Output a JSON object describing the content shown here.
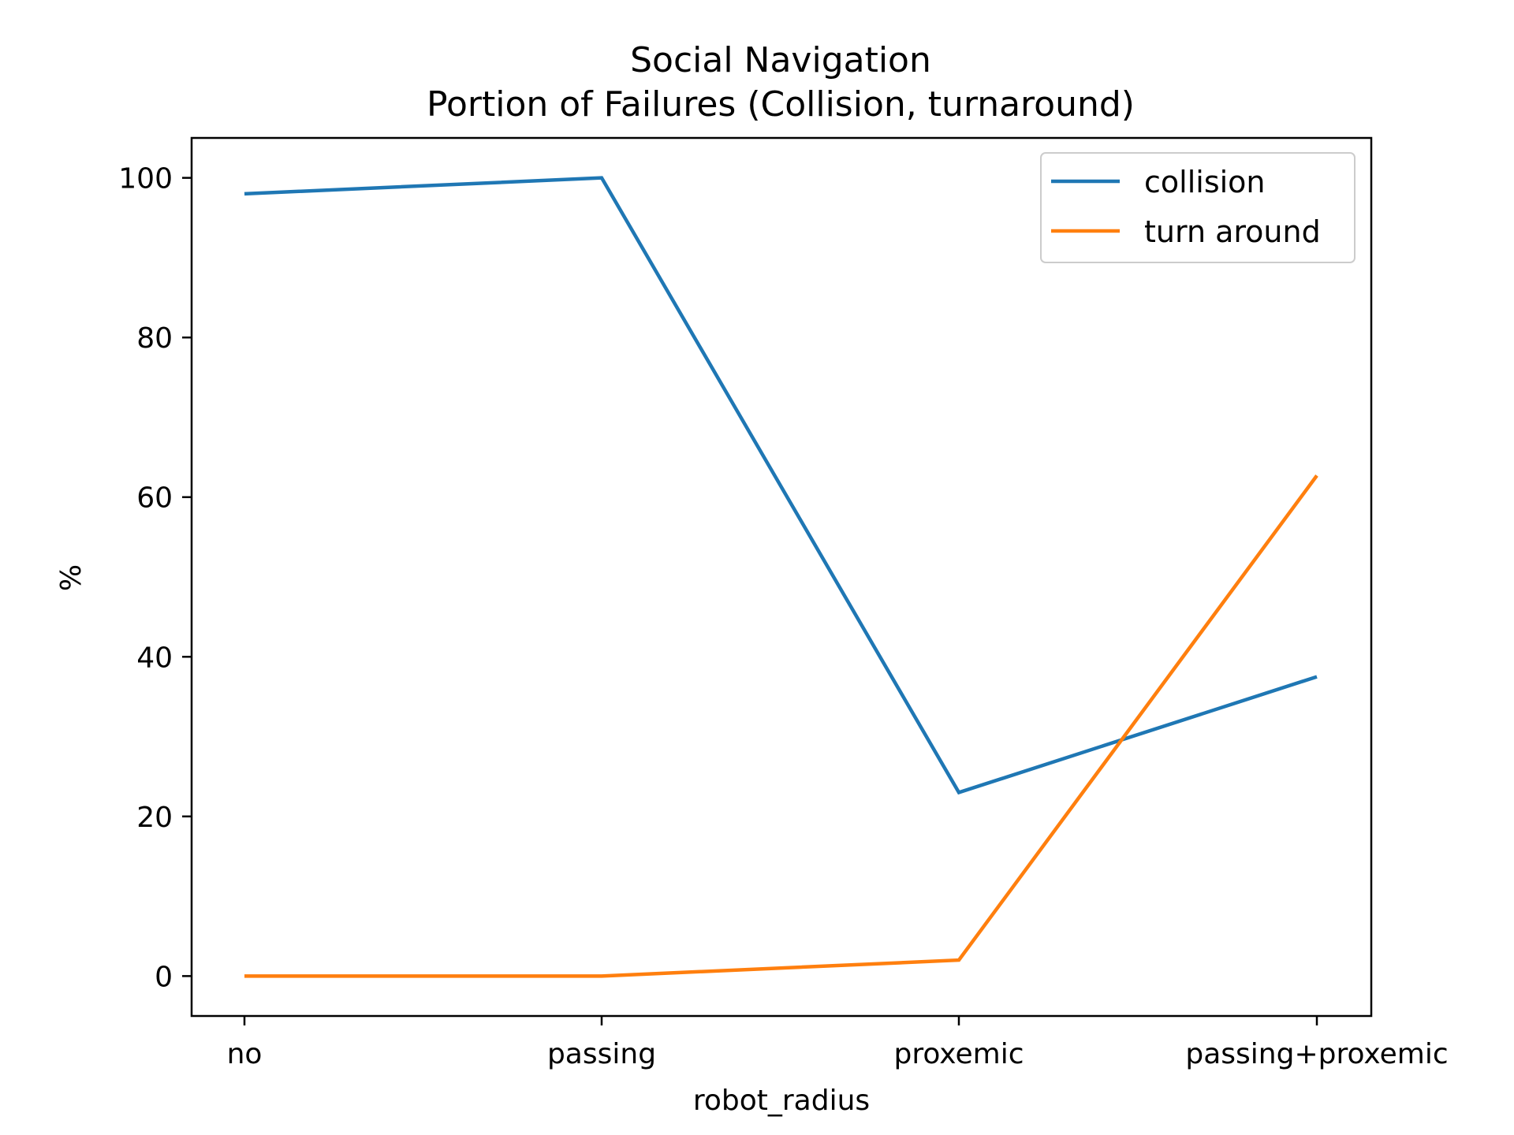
{
  "chart_data": {
    "type": "line",
    "title": "Social Navigation",
    "subtitle": "Portion of Failures (Collision, turnaround)",
    "xlabel": "robot_radius",
    "ylabel": "%",
    "categories": [
      "no",
      "passing",
      "proxemic",
      "passing+proxemic"
    ],
    "series": [
      {
        "name": "collision",
        "color": "#1f77b4",
        "values": [
          98,
          100,
          23,
          37.5
        ]
      },
      {
        "name": "turn around",
        "color": "#ff7f0e",
        "values": [
          0,
          0,
          2,
          62.7
        ]
      }
    ],
    "ylim": [
      -5,
      105
    ],
    "yticks": [
      0,
      20,
      40,
      60,
      80,
      100
    ],
    "grid": false,
    "legend": "top-right"
  }
}
